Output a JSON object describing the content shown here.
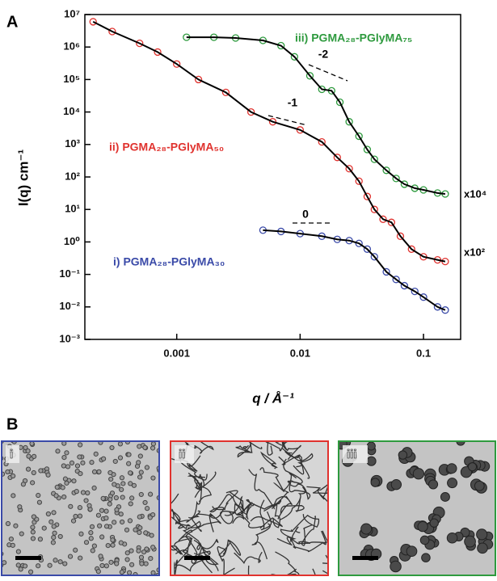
{
  "chart_data": {
    "type": "line",
    "log_x": true,
    "log_y": true,
    "x_label": "q / Å⁻¹",
    "y_label": "I(q) cm⁻¹",
    "xlim": [
      0.00018,
      0.2
    ],
    "ylim": [
      0.001,
      10000000
    ],
    "xticks": [
      0.001,
      0.01,
      0.1
    ],
    "yticks": [
      {
        "value": 0.001,
        "label": "10⁻³"
      },
      {
        "value": 0.01,
        "label": "10⁻²"
      },
      {
        "value": 0.1,
        "label": "10⁻¹"
      },
      {
        "value": 1,
        "label": "10⁰"
      },
      {
        "value": 10,
        "label": "10¹"
      },
      {
        "value": 100,
        "label": "10²"
      },
      {
        "value": 1000,
        "label": "10³"
      },
      {
        "value": 10000,
        "label": "10⁴"
      },
      {
        "value": 100000,
        "label": "10⁵"
      },
      {
        "value": 1000000,
        "label": "10⁶"
      },
      {
        "value": 10000000,
        "label": "10⁷"
      }
    ],
    "fit_color": "#000000",
    "series": [
      {
        "name": "iii) PGMA₂₈-PGlyMA₇₅",
        "color": "#2e9a3e",
        "x": [
          0.0012,
          0.002,
          0.003,
          0.005,
          0.007,
          0.009,
          0.012,
          0.015,
          0.018,
          0.021,
          0.025,
          0.03,
          0.035,
          0.04,
          0.05,
          0.06,
          0.07,
          0.085,
          0.1,
          0.13,
          0.15
        ],
        "values": [
          2000000,
          2000000,
          1900000,
          1600000,
          1100000,
          500000,
          130000,
          50000,
          45000,
          20000,
          5000,
          1800,
          700,
          350,
          160,
          90,
          60,
          45,
          40,
          32,
          30
        ]
      },
      {
        "name": "ii) PGMA₂₈-PGlyMA₅₀",
        "color": "#e0322e",
        "x": [
          0.00021,
          0.0003,
          0.0005,
          0.0007,
          0.001,
          0.0015,
          0.0025,
          0.004,
          0.006,
          0.01,
          0.015,
          0.02,
          0.025,
          0.03,
          0.035,
          0.04,
          0.047,
          0.055,
          0.065,
          0.08,
          0.1,
          0.13,
          0.15
        ],
        "values": [
          6000000,
          3000000,
          1300000,
          700000,
          300000,
          100000,
          40000,
          10000,
          5000,
          2800,
          1200,
          400,
          180,
          74,
          25,
          10,
          5,
          4,
          1.5,
          0.6,
          0.35,
          0.28,
          0.25
        ]
      },
      {
        "name": "i) PGMA₂₈-PGlyMA₃₀",
        "color": "#3a4aa8",
        "x": [
          0.005,
          0.007,
          0.01,
          0.015,
          0.02,
          0.025,
          0.03,
          0.035,
          0.04,
          0.05,
          0.06,
          0.07,
          0.085,
          0.1,
          0.13,
          0.15
        ],
        "values": [
          2.3,
          2.1,
          1.8,
          1.5,
          1.2,
          1.1,
          0.9,
          0.6,
          0.35,
          0.12,
          0.07,
          0.045,
          0.03,
          0.02,
          0.01,
          0.008
        ]
      }
    ],
    "annotations": [
      "-2",
      "-1",
      "0"
    ],
    "scale_factors": [
      "x10⁴",
      "x10²"
    ]
  },
  "figure": {
    "panel_labels": [
      "A",
      "B"
    ],
    "micrographs": [
      {
        "label": "i",
        "border": "#3a4aa8"
      },
      {
        "label": "ii",
        "border": "#e0322e"
      },
      {
        "label": "iii",
        "border": "#2e9a3e"
      }
    ]
  }
}
